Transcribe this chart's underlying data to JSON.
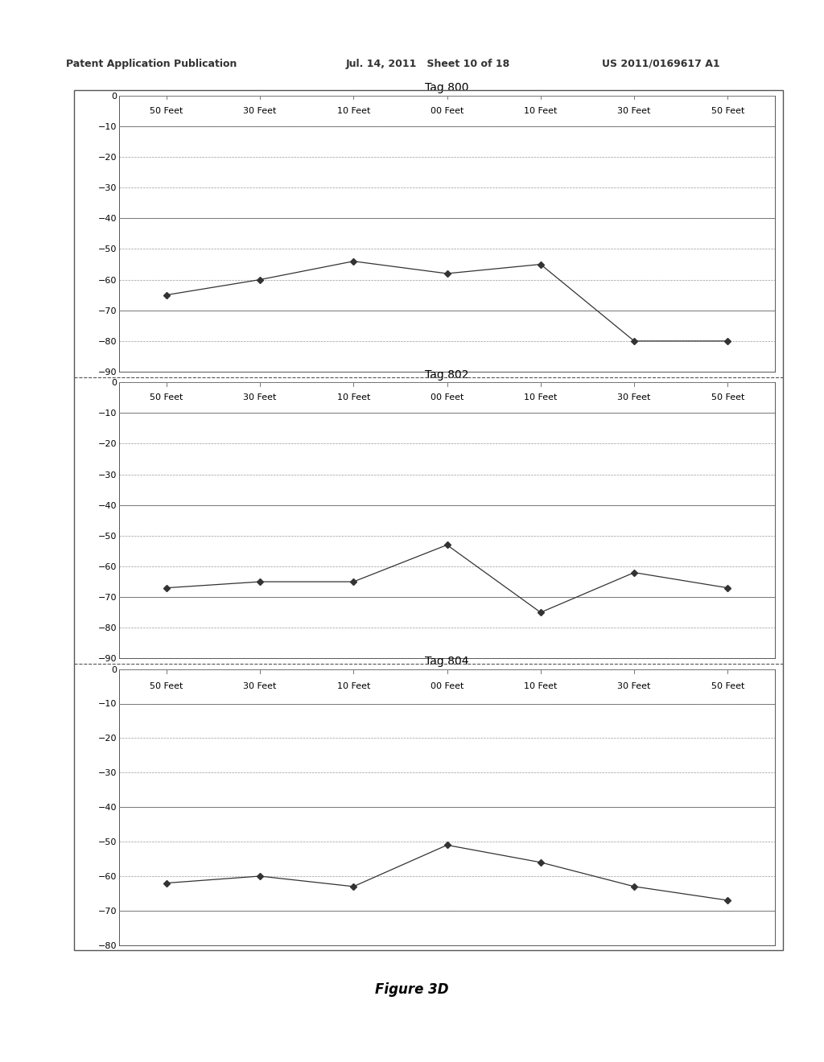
{
  "charts": [
    {
      "title": "Tag 800",
      "x_labels": [
        "50 Feet",
        "30 Feet",
        "10 Feet",
        "00 Feet",
        "10 Feet",
        "30 Feet",
        "50 Feet"
      ],
      "y_values": [
        -65,
        -60,
        -54,
        -58,
        -55,
        -80,
        -80
      ],
      "ylim": [
        -90,
        0
      ],
      "yticks": [
        0,
        -10,
        -20,
        -30,
        -40,
        -50,
        -60,
        -70,
        -80,
        -90
      ]
    },
    {
      "title": "Tag 802",
      "x_labels": [
        "50 Feet",
        "30 Feet",
        "10 Feet",
        "00 Feet",
        "10 Feet",
        "30 Feet",
        "50 Feet"
      ],
      "y_values": [
        -67,
        -65,
        -65,
        -53,
        -75,
        -62,
        -67
      ],
      "ylim": [
        -90,
        0
      ],
      "yticks": [
        0,
        -10,
        -20,
        -30,
        -40,
        -50,
        -60,
        -70,
        -80,
        -90
      ]
    },
    {
      "title": "Tag 804",
      "x_labels": [
        "50 Feet",
        "30 Feet",
        "10 Feet",
        "00 Feet",
        "10 Feet",
        "30 Feet",
        "50 Feet"
      ],
      "y_values": [
        -62,
        -60,
        -63,
        -51,
        -56,
        -63,
        -67
      ],
      "ylim": [
        -80,
        0
      ],
      "yticks": [
        0,
        -10,
        -20,
        -30,
        -40,
        -50,
        -60,
        -70,
        -80
      ]
    }
  ],
  "header_left": "Patent Application Publication",
  "header_mid": "Jul. 14, 2011   Sheet 10 of 18",
  "header_right": "US 2011/0169617 A1",
  "figure_label": "Figure 3D",
  "line_color": "#333333",
  "marker_size": 4,
  "grid_color": "#aaaaaa",
  "background_color": "#ffffff",
  "chart_bg": "#ffffff",
  "border_color": "#555555",
  "title_fontsize": 10,
  "tick_fontsize": 8,
  "label_fontsize": 8,
  "solid_line_color": "#777777",
  "dashed_line_color": "#999999",
  "outer_box_color": "#555555"
}
